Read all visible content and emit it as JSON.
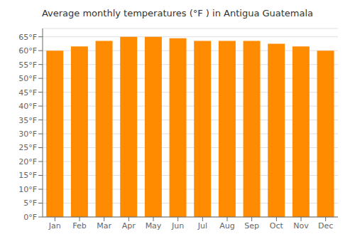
{
  "chart_data": {
    "type": "bar",
    "title": "Average monthly temperatures (°F ) in Antigua Guatemala",
    "categories": [
      "Jan",
      "Feb",
      "Mar",
      "Apr",
      "May",
      "Jun",
      "Jul",
      "Aug",
      "Sep",
      "Oct",
      "Nov",
      "Dec"
    ],
    "values": [
      60,
      61.5,
      63.5,
      65,
      65,
      64.5,
      63.5,
      63.5,
      63.5,
      62.5,
      61.5,
      60
    ],
    "color": "#FF8C00",
    "ylim": [
      0,
      68
    ],
    "yticks": [
      {
        "value": 0,
        "label": "0°F"
      },
      {
        "value": 5,
        "label": "5°F"
      },
      {
        "value": 10,
        "label": "10°F"
      },
      {
        "value": 15,
        "label": "15°F"
      },
      {
        "value": 20,
        "label": "20°F"
      },
      {
        "value": 25,
        "label": "25°F"
      },
      {
        "value": 30,
        "label": "30°F"
      },
      {
        "value": 35,
        "label": "35°F"
      },
      {
        "value": 40,
        "label": "40°F"
      },
      {
        "value": 45,
        "label": "45°F"
      },
      {
        "value": 50,
        "label": "50°F"
      },
      {
        "value": 55,
        "label": "55°F"
      },
      {
        "value": 60,
        "label": "60°F"
      },
      {
        "value": 65,
        "label": "65°F"
      }
    ],
    "grid": true
  }
}
